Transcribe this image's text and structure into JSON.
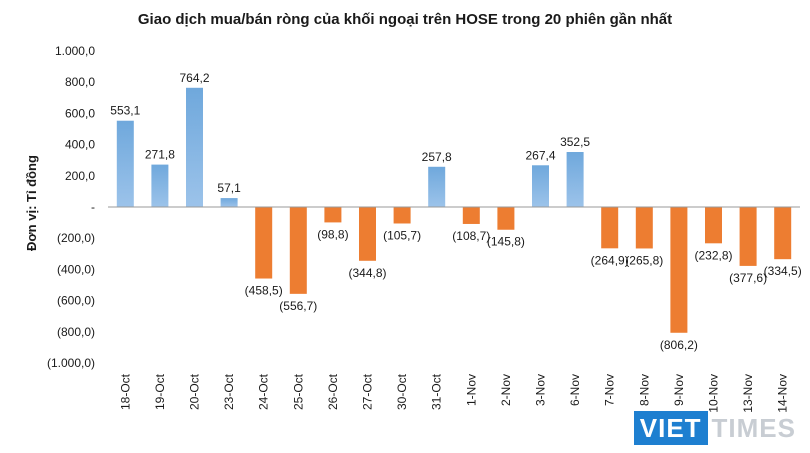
{
  "chart_data": {
    "type": "bar",
    "title": "Giao dịch mua/bán ròng của khối ngoại trên HOSE trong 20 phiên gần nhất",
    "ylabel": "Đơn vị: Tỉ đồng",
    "xlabel": "",
    "ylim": [
      -1000,
      1000
    ],
    "yticks": [
      {
        "value": 1000,
        "label": "1.000,0"
      },
      {
        "value": 800,
        "label": "800,0"
      },
      {
        "value": 600,
        "label": "600,0"
      },
      {
        "value": 400,
        "label": "400,0"
      },
      {
        "value": 200,
        "label": "200,0"
      },
      {
        "value": 0,
        "label": "-"
      },
      {
        "value": -200,
        "label": "(200,0)"
      },
      {
        "value": -400,
        "label": "(400,0)"
      },
      {
        "value": -600,
        "label": "(600,0)"
      },
      {
        "value": -800,
        "label": "(800,0)"
      },
      {
        "value": -1000,
        "label": "(1.000,0)"
      }
    ],
    "categories": [
      "18-Oct",
      "19-Oct",
      "20-Oct",
      "23-Oct",
      "24-Oct",
      "25-Oct",
      "26-Oct",
      "27-Oct",
      "30-Oct",
      "31-Oct",
      "1-Nov",
      "2-Nov",
      "3-Nov",
      "6-Nov",
      "7-Nov",
      "8-Nov",
      "9-Nov",
      "10-Nov",
      "13-Nov",
      "14-Nov"
    ],
    "values": [
      553.1,
      271.8,
      764.2,
      57.1,
      -458.5,
      -556.7,
      -98.8,
      -344.8,
      -105.7,
      257.8,
      -108.7,
      -145.8,
      267.4,
      352.5,
      -264.9,
      -265.8,
      -806.2,
      -232.8,
      -377.6,
      -334.5
    ],
    "data_labels": [
      "553,1",
      "271,8",
      "764,2",
      "57,1",
      "(458,5)",
      "(556,7)",
      "(98,8)",
      "(344,8)",
      "(105,7)",
      "257,8",
      "(108,7)",
      "(145,8)",
      "267,4",
      "352,5",
      "(264,9)",
      "(265,8)",
      "(806,2)",
      "(232,8)",
      "(377,6)",
      "(334,5)"
    ],
    "colors": {
      "positive": "#5b9bd5",
      "positive_light": "#8fbbe6",
      "negative": "#ed7d31",
      "axis": "#999999"
    },
    "grid": false,
    "legend": "none"
  },
  "watermark": {
    "part1": "VIET",
    "part2": "TIMES"
  }
}
